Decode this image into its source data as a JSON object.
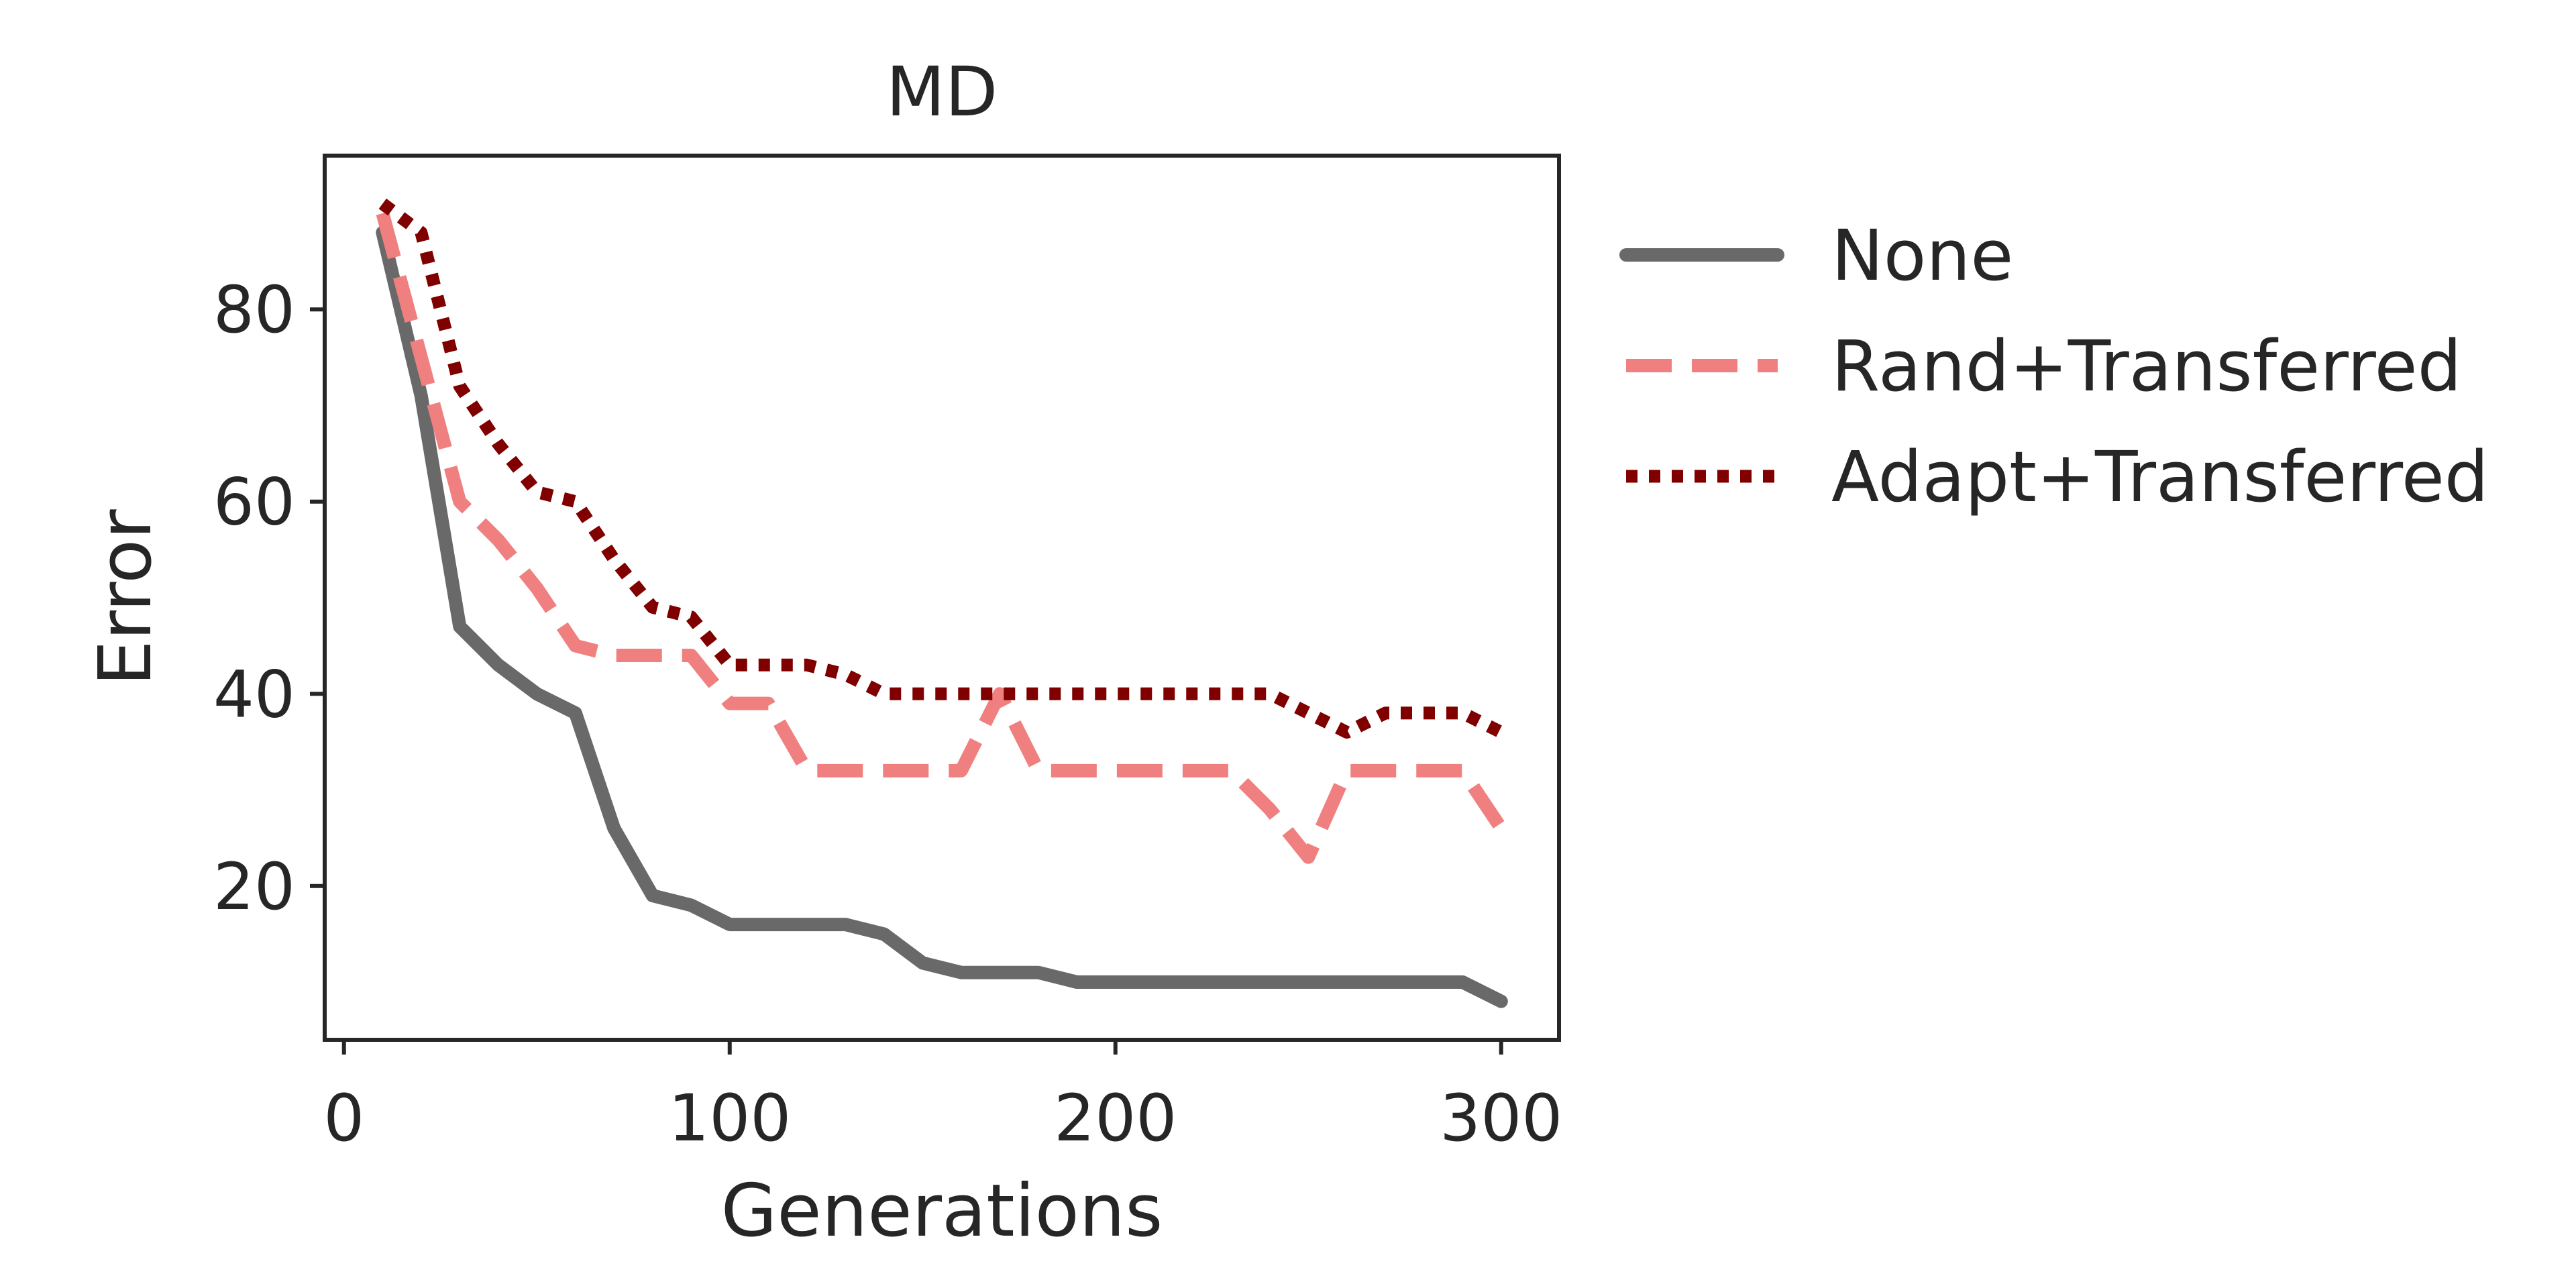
{
  "chart_data": {
    "type": "line",
    "title": "MD",
    "xlabel": "Generations",
    "ylabel": "Error",
    "xlim": [
      -5,
      315
    ],
    "ylim": [
      4,
      96
    ],
    "xticks": [
      0,
      100,
      200,
      300
    ],
    "yticks": [
      20,
      40,
      60,
      80
    ],
    "grid": false,
    "legend_position": "outside-right",
    "series": [
      {
        "name": "None",
        "color": "#696969",
        "style": "solid",
        "x": [
          10,
          20,
          30,
          40,
          50,
          60,
          70,
          80,
          90,
          100,
          110,
          120,
          130,
          140,
          150,
          160,
          170,
          180,
          190,
          200,
          210,
          220,
          230,
          240,
          250,
          260,
          270,
          280,
          290,
          300
        ],
        "values": [
          88,
          71,
          47,
          43,
          40,
          38,
          26,
          19,
          18,
          16,
          16,
          16,
          16,
          15,
          12,
          11,
          11,
          11,
          10,
          10,
          10,
          10,
          10,
          10,
          10,
          10,
          10,
          10,
          10,
          8
        ]
      },
      {
        "name": "Rand+Transferred",
        "color": "#f08080",
        "style": "dashed",
        "x": [
          10,
          20,
          30,
          40,
          50,
          60,
          70,
          80,
          90,
          100,
          110,
          120,
          130,
          140,
          150,
          160,
          170,
          180,
          190,
          200,
          210,
          220,
          230,
          240,
          250,
          260,
          270,
          280,
          290,
          300
        ],
        "values": [
          90,
          75,
          60,
          56,
          51,
          45,
          44,
          44,
          44,
          39,
          39,
          32,
          32,
          32,
          32,
          32,
          40,
          32,
          32,
          32,
          32,
          32,
          32,
          28,
          23,
          32,
          32,
          32,
          32,
          26
        ]
      },
      {
        "name": "Adapt+Transferred",
        "color": "#800000",
        "style": "dotted",
        "x": [
          10,
          20,
          30,
          40,
          50,
          60,
          70,
          80,
          90,
          100,
          110,
          120,
          130,
          140,
          150,
          160,
          170,
          180,
          190,
          200,
          210,
          220,
          230,
          240,
          250,
          260,
          270,
          280,
          290,
          300
        ],
        "values": [
          91,
          88,
          72,
          66,
          61,
          60,
          54,
          49,
          48,
          43,
          43,
          43,
          42,
          40,
          40,
          40,
          40,
          40,
          40,
          40,
          40,
          40,
          40,
          40,
          38,
          36,
          38,
          38,
          38,
          36
        ]
      }
    ]
  }
}
